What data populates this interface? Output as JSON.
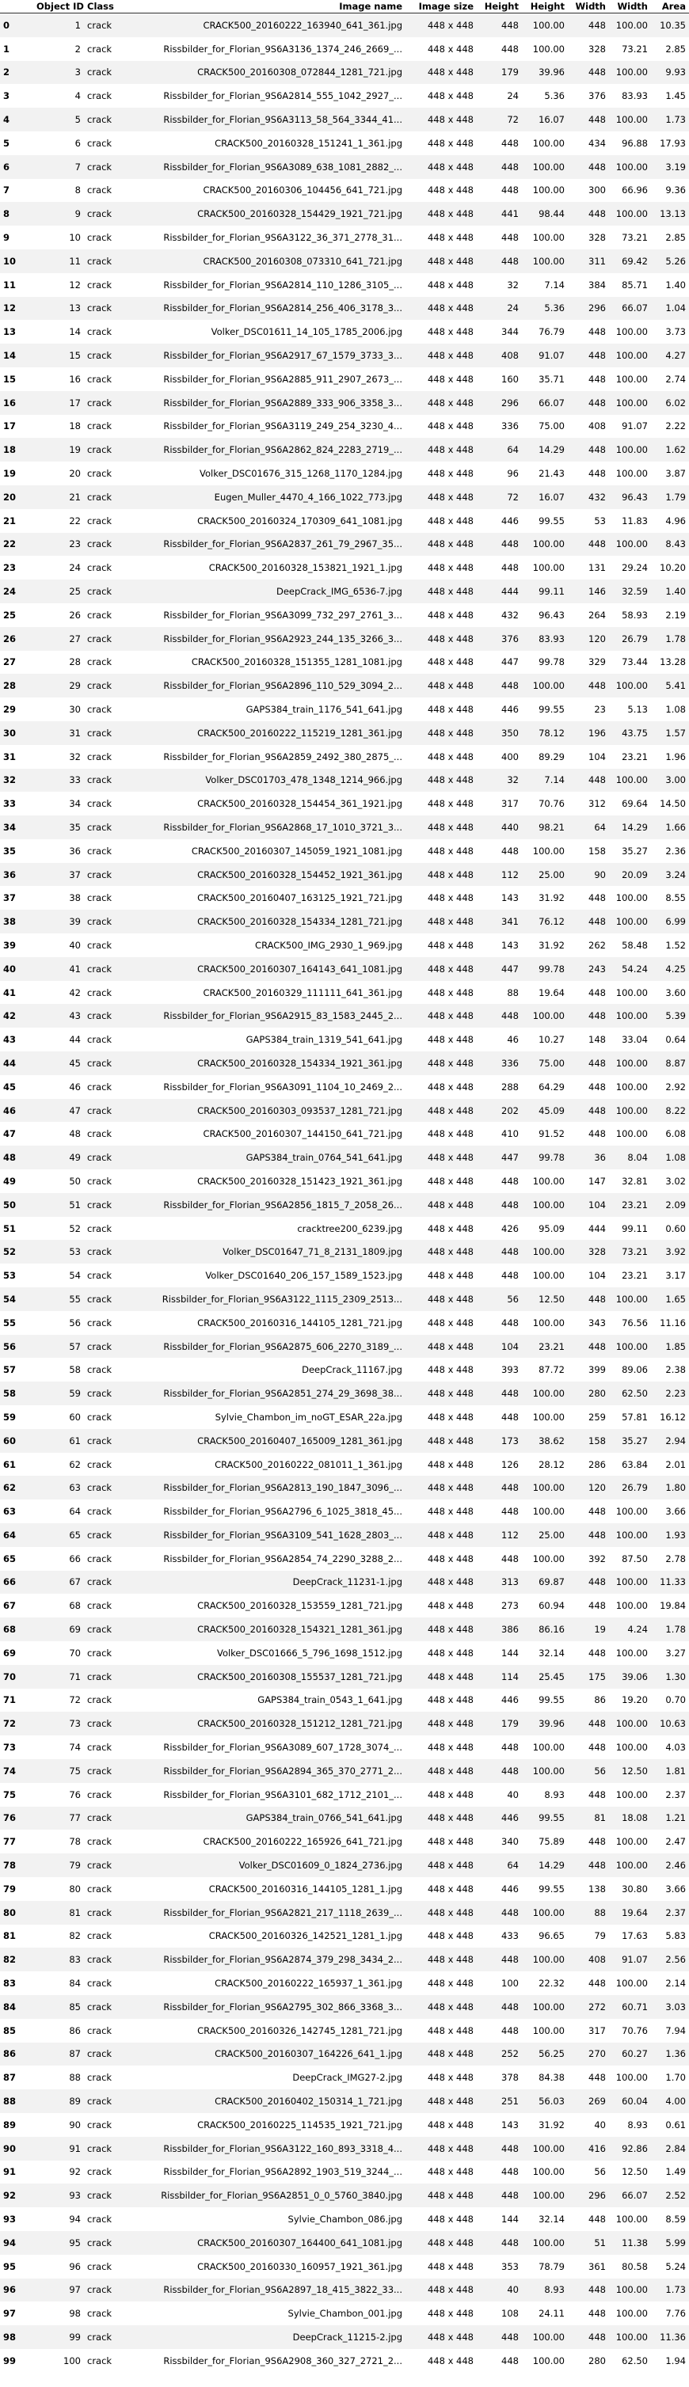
{
  "columns": [
    "",
    "Object ID",
    "Class",
    "Image name",
    "Image size",
    "Height",
    "Height",
    "Width",
    "Width",
    "Area"
  ],
  "rows": [
    [
      "0",
      "1",
      "crack",
      "CRACK500_20160222_163940_641_361.jpg",
      "448 x 448",
      "448",
      "100.00",
      "448",
      "100.00",
      "10.35"
    ],
    [
      "1",
      "2",
      "crack",
      "Rissbilder_for_Florian_9S6A3136_1374_246_2669_...",
      "448 x 448",
      "448",
      "100.00",
      "328",
      "73.21",
      "2.85"
    ],
    [
      "2",
      "3",
      "crack",
      "CRACK500_20160308_072844_1281_721.jpg",
      "448 x 448",
      "179",
      "39.96",
      "448",
      "100.00",
      "9.93"
    ],
    [
      "3",
      "4",
      "crack",
      "Rissbilder_for_Florian_9S6A2814_555_1042_2927_...",
      "448 x 448",
      "24",
      "5.36",
      "376",
      "83.93",
      "1.45"
    ],
    [
      "4",
      "5",
      "crack",
      "Rissbilder_for_Florian_9S6A3113_58_564_3344_41...",
      "448 x 448",
      "72",
      "16.07",
      "448",
      "100.00",
      "1.73"
    ],
    [
      "5",
      "6",
      "crack",
      "CRACK500_20160328_151241_1_361.jpg",
      "448 x 448",
      "448",
      "100.00",
      "434",
      "96.88",
      "17.93"
    ],
    [
      "6",
      "7",
      "crack",
      "Rissbilder_for_Florian_9S6A3089_638_1081_2882_...",
      "448 x 448",
      "448",
      "100.00",
      "448",
      "100.00",
      "3.19"
    ],
    [
      "7",
      "8",
      "crack",
      "CRACK500_20160306_104456_641_721.jpg",
      "448 x 448",
      "448",
      "100.00",
      "300",
      "66.96",
      "9.36"
    ],
    [
      "8",
      "9",
      "crack",
      "CRACK500_20160328_154429_1921_721.jpg",
      "448 x 448",
      "441",
      "98.44",
      "448",
      "100.00",
      "13.13"
    ],
    [
      "9",
      "10",
      "crack",
      "Rissbilder_for_Florian_9S6A3122_36_371_2778_31...",
      "448 x 448",
      "448",
      "100.00",
      "328",
      "73.21",
      "2.85"
    ],
    [
      "10",
      "11",
      "crack",
      "CRACK500_20160308_073310_641_721.jpg",
      "448 x 448",
      "448",
      "100.00",
      "311",
      "69.42",
      "5.26"
    ],
    [
      "11",
      "12",
      "crack",
      "Rissbilder_for_Florian_9S6A2814_110_1286_3105_...",
      "448 x 448",
      "32",
      "7.14",
      "384",
      "85.71",
      "1.40"
    ],
    [
      "12",
      "13",
      "crack",
      "Rissbilder_for_Florian_9S6A2814_256_406_3178_3...",
      "448 x 448",
      "24",
      "5.36",
      "296",
      "66.07",
      "1.04"
    ],
    [
      "13",
      "14",
      "crack",
      "Volker_DSC01611_14_105_1785_2006.jpg",
      "448 x 448",
      "344",
      "76.79",
      "448",
      "100.00",
      "3.73"
    ],
    [
      "14",
      "15",
      "crack",
      "Rissbilder_for_Florian_9S6A2917_67_1579_3733_3...",
      "448 x 448",
      "408",
      "91.07",
      "448",
      "100.00",
      "4.27"
    ],
    [
      "15",
      "16",
      "crack",
      "Rissbilder_for_Florian_9S6A2885_911_2907_2673_...",
      "448 x 448",
      "160",
      "35.71",
      "448",
      "100.00",
      "2.74"
    ],
    [
      "16",
      "17",
      "crack",
      "Rissbilder_for_Florian_9S6A2889_333_906_3358_3...",
      "448 x 448",
      "296",
      "66.07",
      "448",
      "100.00",
      "6.02"
    ],
    [
      "17",
      "18",
      "crack",
      "Rissbilder_for_Florian_9S6A3119_249_254_3230_4...",
      "448 x 448",
      "336",
      "75.00",
      "408",
      "91.07",
      "2.22"
    ],
    [
      "18",
      "19",
      "crack",
      "Rissbilder_for_Florian_9S6A2862_824_2283_2719_...",
      "448 x 448",
      "64",
      "14.29",
      "448",
      "100.00",
      "1.62"
    ],
    [
      "19",
      "20",
      "crack",
      "Volker_DSC01676_315_1268_1170_1284.jpg",
      "448 x 448",
      "96",
      "21.43",
      "448",
      "100.00",
      "3.87"
    ],
    [
      "20",
      "21",
      "crack",
      "Eugen_Muller_4470_4_166_1022_773.jpg",
      "448 x 448",
      "72",
      "16.07",
      "432",
      "96.43",
      "1.79"
    ],
    [
      "21",
      "22",
      "crack",
      "CRACK500_20160324_170309_641_1081.jpg",
      "448 x 448",
      "446",
      "99.55",
      "53",
      "11.83",
      "4.96"
    ],
    [
      "22",
      "23",
      "crack",
      "Rissbilder_for_Florian_9S6A2837_261_79_2967_35...",
      "448 x 448",
      "448",
      "100.00",
      "448",
      "100.00",
      "8.43"
    ],
    [
      "23",
      "24",
      "crack",
      "CRACK500_20160328_153821_1921_1.jpg",
      "448 x 448",
      "448",
      "100.00",
      "131",
      "29.24",
      "10.20"
    ],
    [
      "24",
      "25",
      "crack",
      "DeepCrack_IMG_6536-7.jpg",
      "448 x 448",
      "444",
      "99.11",
      "146",
      "32.59",
      "1.40"
    ],
    [
      "25",
      "26",
      "crack",
      "Rissbilder_for_Florian_9S6A3099_732_297_2761_3...",
      "448 x 448",
      "432",
      "96.43",
      "264",
      "58.93",
      "2.19"
    ],
    [
      "26",
      "27",
      "crack",
      "Rissbilder_for_Florian_9S6A2923_244_135_3266_3...",
      "448 x 448",
      "376",
      "83.93",
      "120",
      "26.79",
      "1.78"
    ],
    [
      "27",
      "28",
      "crack",
      "CRACK500_20160328_151355_1281_1081.jpg",
      "448 x 448",
      "447",
      "99.78",
      "329",
      "73.44",
      "13.28"
    ],
    [
      "28",
      "29",
      "crack",
      "Rissbilder_for_Florian_9S6A2896_110_529_3094_2...",
      "448 x 448",
      "448",
      "100.00",
      "448",
      "100.00",
      "5.41"
    ],
    [
      "29",
      "30",
      "crack",
      "GAPS384_train_1176_541_641.jpg",
      "448 x 448",
      "446",
      "99.55",
      "23",
      "5.13",
      "1.08"
    ],
    [
      "30",
      "31",
      "crack",
      "CRACK500_20160222_115219_1281_361.jpg",
      "448 x 448",
      "350",
      "78.12",
      "196",
      "43.75",
      "1.57"
    ],
    [
      "31",
      "32",
      "crack",
      "Rissbilder_for_Florian_9S6A2859_2492_380_2875_...",
      "448 x 448",
      "400",
      "89.29",
      "104",
      "23.21",
      "1.96"
    ],
    [
      "32",
      "33",
      "crack",
      "Volker_DSC01703_478_1348_1214_966.jpg",
      "448 x 448",
      "32",
      "7.14",
      "448",
      "100.00",
      "3.00"
    ],
    [
      "33",
      "34",
      "crack",
      "CRACK500_20160328_154454_361_1921.jpg",
      "448 x 448",
      "317",
      "70.76",
      "312",
      "69.64",
      "14.50"
    ],
    [
      "34",
      "35",
      "crack",
      "Rissbilder_for_Florian_9S6A2868_17_1010_3721_3...",
      "448 x 448",
      "440",
      "98.21",
      "64",
      "14.29",
      "1.66"
    ],
    [
      "35",
      "36",
      "crack",
      "CRACK500_20160307_145059_1921_1081.jpg",
      "448 x 448",
      "448",
      "100.00",
      "158",
      "35.27",
      "2.36"
    ],
    [
      "36",
      "37",
      "crack",
      "CRACK500_20160328_154452_1921_361.jpg",
      "448 x 448",
      "112",
      "25.00",
      "90",
      "20.09",
      "3.24"
    ],
    [
      "37",
      "38",
      "crack",
      "CRACK500_20160407_163125_1921_721.jpg",
      "448 x 448",
      "143",
      "31.92",
      "448",
      "100.00",
      "8.55"
    ],
    [
      "38",
      "39",
      "crack",
      "CRACK500_20160328_154334_1281_721.jpg",
      "448 x 448",
      "341",
      "76.12",
      "448",
      "100.00",
      "6.99"
    ],
    [
      "39",
      "40",
      "crack",
      "CRACK500_IMG_2930_1_969.jpg",
      "448 x 448",
      "143",
      "31.92",
      "262",
      "58.48",
      "1.52"
    ],
    [
      "40",
      "41",
      "crack",
      "CRACK500_20160307_164143_641_1081.jpg",
      "448 x 448",
      "447",
      "99.78",
      "243",
      "54.24",
      "4.25"
    ],
    [
      "41",
      "42",
      "crack",
      "CRACK500_20160329_111111_641_361.jpg",
      "448 x 448",
      "88",
      "19.64",
      "448",
      "100.00",
      "3.60"
    ],
    [
      "42",
      "43",
      "crack",
      "Rissbilder_for_Florian_9S6A2915_83_1583_2445_2...",
      "448 x 448",
      "448",
      "100.00",
      "448",
      "100.00",
      "5.39"
    ],
    [
      "43",
      "44",
      "crack",
      "GAPS384_train_1319_541_641.jpg",
      "448 x 448",
      "46",
      "10.27",
      "148",
      "33.04",
      "0.64"
    ],
    [
      "44",
      "45",
      "crack",
      "CRACK500_20160328_154334_1921_361.jpg",
      "448 x 448",
      "336",
      "75.00",
      "448",
      "100.00",
      "8.87"
    ],
    [
      "45",
      "46",
      "crack",
      "Rissbilder_for_Florian_9S6A3091_1104_10_2469_2...",
      "448 x 448",
      "288",
      "64.29",
      "448",
      "100.00",
      "2.92"
    ],
    [
      "46",
      "47",
      "crack",
      "CRACK500_20160303_093537_1281_721.jpg",
      "448 x 448",
      "202",
      "45.09",
      "448",
      "100.00",
      "8.22"
    ],
    [
      "47",
      "48",
      "crack",
      "CRACK500_20160307_144150_641_721.jpg",
      "448 x 448",
      "410",
      "91.52",
      "448",
      "100.00",
      "6.08"
    ],
    [
      "48",
      "49",
      "crack",
      "GAPS384_train_0764_541_641.jpg",
      "448 x 448",
      "447",
      "99.78",
      "36",
      "8.04",
      "1.08"
    ],
    [
      "49",
      "50",
      "crack",
      "CRACK500_20160328_151423_1921_361.jpg",
      "448 x 448",
      "448",
      "100.00",
      "147",
      "32.81",
      "3.02"
    ],
    [
      "50",
      "51",
      "crack",
      "Rissbilder_for_Florian_9S6A2856_1815_7_2058_26...",
      "448 x 448",
      "448",
      "100.00",
      "104",
      "23.21",
      "2.09"
    ],
    [
      "51",
      "52",
      "crack",
      "cracktree200_6239.jpg",
      "448 x 448",
      "426",
      "95.09",
      "444",
      "99.11",
      "0.60"
    ],
    [
      "52",
      "53",
      "crack",
      "Volker_DSC01647_71_8_2131_1809.jpg",
      "448 x 448",
      "448",
      "100.00",
      "328",
      "73.21",
      "3.92"
    ],
    [
      "53",
      "54",
      "crack",
      "Volker_DSC01640_206_157_1589_1523.jpg",
      "448 x 448",
      "448",
      "100.00",
      "104",
      "23.21",
      "3.17"
    ],
    [
      "54",
      "55",
      "crack",
      "Rissbilder_for_Florian_9S6A3122_1115_2309_2513...",
      "448 x 448",
      "56",
      "12.50",
      "448",
      "100.00",
      "1.65"
    ],
    [
      "55",
      "56",
      "crack",
      "CRACK500_20160316_144105_1281_721.jpg",
      "448 x 448",
      "448",
      "100.00",
      "343",
      "76.56",
      "11.16"
    ],
    [
      "56",
      "57",
      "crack",
      "Rissbilder_for_Florian_9S6A2875_606_2270_3189_...",
      "448 x 448",
      "104",
      "23.21",
      "448",
      "100.00",
      "1.85"
    ],
    [
      "57",
      "58",
      "crack",
      "DeepCrack_11167.jpg",
      "448 x 448",
      "393",
      "87.72",
      "399",
      "89.06",
      "2.38"
    ],
    [
      "58",
      "59",
      "crack",
      "Rissbilder_for_Florian_9S6A2851_274_29_3698_38...",
      "448 x 448",
      "448",
      "100.00",
      "280",
      "62.50",
      "2.23"
    ],
    [
      "59",
      "60",
      "crack",
      "Sylvie_Chambon_im_noGT_ESAR_22a.jpg",
      "448 x 448",
      "448",
      "100.00",
      "259",
      "57.81",
      "16.12"
    ],
    [
      "60",
      "61",
      "crack",
      "CRACK500_20160407_165009_1281_361.jpg",
      "448 x 448",
      "173",
      "38.62",
      "158",
      "35.27",
      "2.94"
    ],
    [
      "61",
      "62",
      "crack",
      "CRACK500_20160222_081011_1_361.jpg",
      "448 x 448",
      "126",
      "28.12",
      "286",
      "63.84",
      "2.01"
    ],
    [
      "62",
      "63",
      "crack",
      "Rissbilder_for_Florian_9S6A2813_190_1847_3096_...",
      "448 x 448",
      "448",
      "100.00",
      "120",
      "26.79",
      "1.80"
    ],
    [
      "63",
      "64",
      "crack",
      "Rissbilder_for_Florian_9S6A2796_6_1025_3818_45...",
      "448 x 448",
      "448",
      "100.00",
      "448",
      "100.00",
      "3.66"
    ],
    [
      "64",
      "65",
      "crack",
      "Rissbilder_for_Florian_9S6A3109_541_1628_2803_...",
      "448 x 448",
      "112",
      "25.00",
      "448",
      "100.00",
      "1.93"
    ],
    [
      "65",
      "66",
      "crack",
      "Rissbilder_for_Florian_9S6A2854_74_2290_3288_2...",
      "448 x 448",
      "448",
      "100.00",
      "392",
      "87.50",
      "2.78"
    ],
    [
      "66",
      "67",
      "crack",
      "DeepCrack_11231-1.jpg",
      "448 x 448",
      "313",
      "69.87",
      "448",
      "100.00",
      "11.33"
    ],
    [
      "67",
      "68",
      "crack",
      "CRACK500_20160328_153559_1281_721.jpg",
      "448 x 448",
      "273",
      "60.94",
      "448",
      "100.00",
      "19.84"
    ],
    [
      "68",
      "69",
      "crack",
      "CRACK500_20160328_154321_1281_361.jpg",
      "448 x 448",
      "386",
      "86.16",
      "19",
      "4.24",
      "1.78"
    ],
    [
      "69",
      "70",
      "crack",
      "Volker_DSC01666_5_796_1698_1512.jpg",
      "448 x 448",
      "144",
      "32.14",
      "448",
      "100.00",
      "3.27"
    ],
    [
      "70",
      "71",
      "crack",
      "CRACK500_20160308_155537_1281_721.jpg",
      "448 x 448",
      "114",
      "25.45",
      "175",
      "39.06",
      "1.30"
    ],
    [
      "71",
      "72",
      "crack",
      "GAPS384_train_0543_1_641.jpg",
      "448 x 448",
      "446",
      "99.55",
      "86",
      "19.20",
      "0.70"
    ],
    [
      "72",
      "73",
      "crack",
      "CRACK500_20160328_151212_1281_721.jpg",
      "448 x 448",
      "179",
      "39.96",
      "448",
      "100.00",
      "10.63"
    ],
    [
      "73",
      "74",
      "crack",
      "Rissbilder_for_Florian_9S6A3089_607_1728_3074_...",
      "448 x 448",
      "448",
      "100.00",
      "448",
      "100.00",
      "4.03"
    ],
    [
      "74",
      "75",
      "crack",
      "Rissbilder_for_Florian_9S6A2894_365_370_2771_2...",
      "448 x 448",
      "448",
      "100.00",
      "56",
      "12.50",
      "1.81"
    ],
    [
      "75",
      "76",
      "crack",
      "Rissbilder_for_Florian_9S6A3101_682_1712_2101_...",
      "448 x 448",
      "40",
      "8.93",
      "448",
      "100.00",
      "2.37"
    ],
    [
      "76",
      "77",
      "crack",
      "GAPS384_train_0766_541_641.jpg",
      "448 x 448",
      "446",
      "99.55",
      "81",
      "18.08",
      "1.21"
    ],
    [
      "77",
      "78",
      "crack",
      "CRACK500_20160222_165926_641_721.jpg",
      "448 x 448",
      "340",
      "75.89",
      "448",
      "100.00",
      "2.47"
    ],
    [
      "78",
      "79",
      "crack",
      "Volker_DSC01609_0_1824_2736.jpg",
      "448 x 448",
      "64",
      "14.29",
      "448",
      "100.00",
      "2.46"
    ],
    [
      "79",
      "80",
      "crack",
      "CRACK500_20160316_144105_1281_1.jpg",
      "448 x 448",
      "446",
      "99.55",
      "138",
      "30.80",
      "3.66"
    ],
    [
      "80",
      "81",
      "crack",
      "Rissbilder_for_Florian_9S6A2821_217_1118_2639_...",
      "448 x 448",
      "448",
      "100.00",
      "88",
      "19.64",
      "2.37"
    ],
    [
      "81",
      "82",
      "crack",
      "CRACK500_20160326_142521_1281_1.jpg",
      "448 x 448",
      "433",
      "96.65",
      "79",
      "17.63",
      "5.83"
    ],
    [
      "82",
      "83",
      "crack",
      "Rissbilder_for_Florian_9S6A2874_379_298_3434_2...",
      "448 x 448",
      "448",
      "100.00",
      "408",
      "91.07",
      "2.56"
    ],
    [
      "83",
      "84",
      "crack",
      "CRACK500_20160222_165937_1_361.jpg",
      "448 x 448",
      "100",
      "22.32",
      "448",
      "100.00",
      "2.14"
    ],
    [
      "84",
      "85",
      "crack",
      "Rissbilder_for_Florian_9S6A2795_302_866_3368_3...",
      "448 x 448",
      "448",
      "100.00",
      "272",
      "60.71",
      "3.03"
    ],
    [
      "85",
      "86",
      "crack",
      "CRACK500_20160326_142745_1281_721.jpg",
      "448 x 448",
      "448",
      "100.00",
      "317",
      "70.76",
      "7.94"
    ],
    [
      "86",
      "87",
      "crack",
      "CRACK500_20160307_164226_641_1.jpg",
      "448 x 448",
      "252",
      "56.25",
      "270",
      "60.27",
      "1.36"
    ],
    [
      "87",
      "88",
      "crack",
      "DeepCrack_IMG27-2.jpg",
      "448 x 448",
      "378",
      "84.38",
      "448",
      "100.00",
      "1.70"
    ],
    [
      "88",
      "89",
      "crack",
      "CRACK500_20160402_150314_1_721.jpg",
      "448 x 448",
      "251",
      "56.03",
      "269",
      "60.04",
      "4.00"
    ],
    [
      "89",
      "90",
      "crack",
      "CRACK500_20160225_114535_1921_721.jpg",
      "448 x 448",
      "143",
      "31.92",
      "40",
      "8.93",
      "0.61"
    ],
    [
      "90",
      "91",
      "crack",
      "Rissbilder_for_Florian_9S6A3122_160_893_3318_4...",
      "448 x 448",
      "448",
      "100.00",
      "416",
      "92.86",
      "2.84"
    ],
    [
      "91",
      "92",
      "crack",
      "Rissbilder_for_Florian_9S6A2892_1903_519_3244_...",
      "448 x 448",
      "448",
      "100.00",
      "56",
      "12.50",
      "1.49"
    ],
    [
      "92",
      "93",
      "crack",
      "Rissbilder_for_Florian_9S6A2851_0_0_5760_3840.jpg",
      "448 x 448",
      "448",
      "100.00",
      "296",
      "66.07",
      "2.52"
    ],
    [
      "93",
      "94",
      "crack",
      "Sylvie_Chambon_086.jpg",
      "448 x 448",
      "144",
      "32.14",
      "448",
      "100.00",
      "8.59"
    ],
    [
      "94",
      "95",
      "crack",
      "CRACK500_20160307_164400_641_1081.jpg",
      "448 x 448",
      "448",
      "100.00",
      "51",
      "11.38",
      "5.99"
    ],
    [
      "95",
      "96",
      "crack",
      "CRACK500_20160330_160957_1921_361.jpg",
      "448 x 448",
      "353",
      "78.79",
      "361",
      "80.58",
      "5.24"
    ],
    [
      "96",
      "97",
      "crack",
      "Rissbilder_for_Florian_9S6A2897_18_415_3822_33...",
      "448 x 448",
      "40",
      "8.93",
      "448",
      "100.00",
      "1.73"
    ],
    [
      "97",
      "98",
      "crack",
      "Sylvie_Chambon_001.jpg",
      "448 x 448",
      "108",
      "24.11",
      "448",
      "100.00",
      "7.76"
    ],
    [
      "98",
      "99",
      "crack",
      "DeepCrack_11215-2.jpg",
      "448 x 448",
      "448",
      "100.00",
      "448",
      "100.00",
      "11.36"
    ],
    [
      "99",
      "100",
      "crack",
      "Rissbilder_for_Florian_9S6A2908_360_327_2721_2...",
      "448 x 448",
      "448",
      "100.00",
      "280",
      "62.50",
      "1.94"
    ]
  ]
}
